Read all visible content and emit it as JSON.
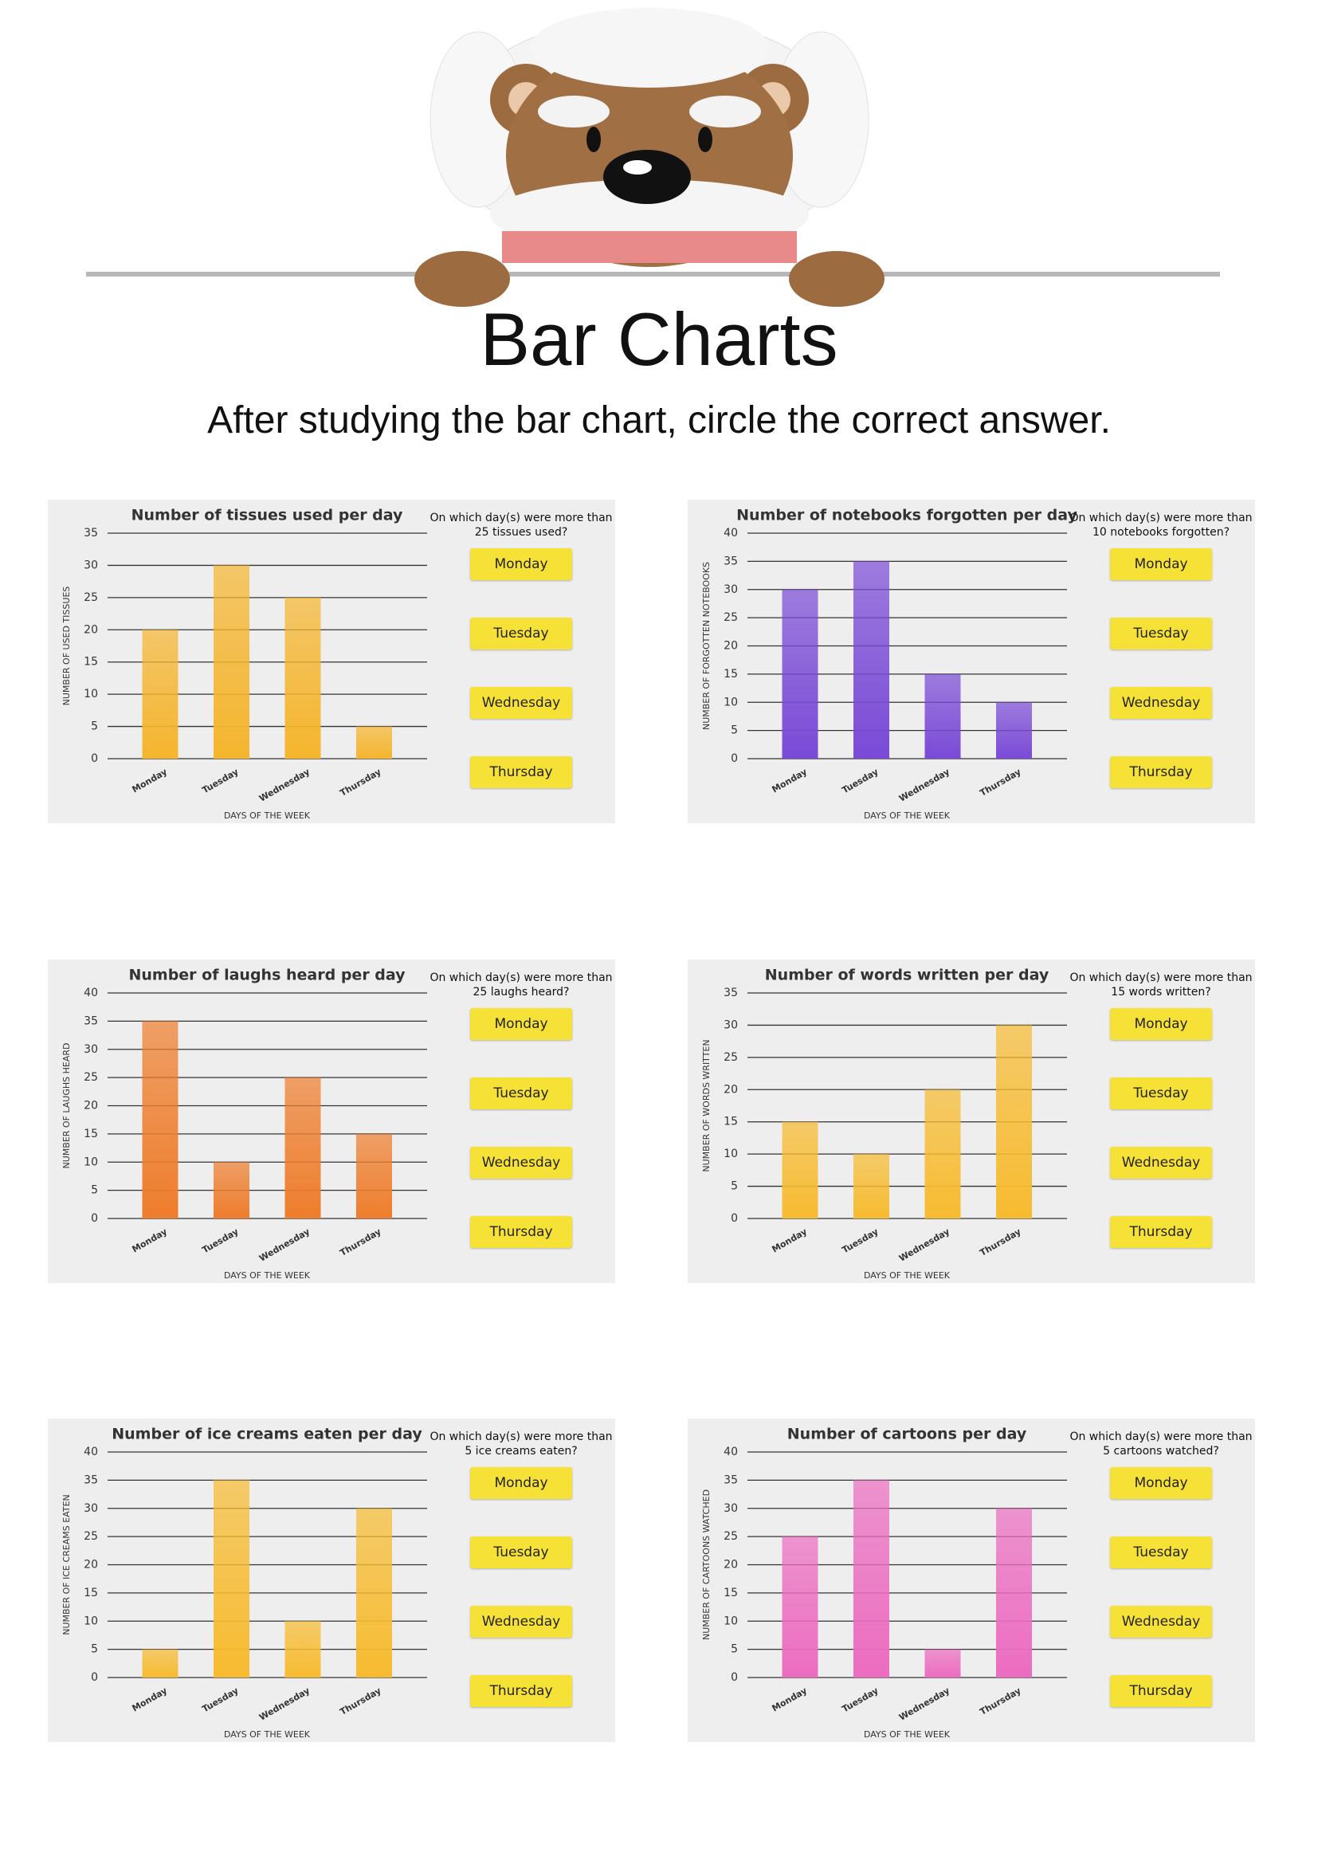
{
  "header": {
    "title": "Bar Charts",
    "subtitle": "After studying the bar chart, circle the correct answer."
  },
  "chart_data": [
    {
      "type": "bar",
      "title": "Number of tissues used per day",
      "xlabel": "DAYS OF THE WEEK",
      "ylabel": "NUMBER OF USED TISSUES",
      "categories": [
        "Monday",
        "Tuesday",
        "Wednesday",
        "Thursday"
      ],
      "values": [
        20,
        30,
        25,
        5
      ],
      "color": "#f5b52e",
      "ylim": [
        0,
        35
      ],
      "yticks": [
        0,
        5,
        10,
        15,
        20,
        25,
        30,
        35
      ],
      "grid": true,
      "question": "On which day(s) were more than 25 tissues used?",
      "options": [
        "Monday",
        "Tuesday",
        "Wednesday",
        "Thursday"
      ]
    },
    {
      "type": "bar",
      "title": "Number of notebooks forgotten per day",
      "xlabel": "DAYS OF THE WEEK",
      "ylabel": "NUMBER OF FORGOTTEN NOTEBOOKS",
      "categories": [
        "Monday",
        "Tuesday",
        "Wednesday",
        "Thursday"
      ],
      "values": [
        30,
        35,
        15,
        10
      ],
      "color": "#7a4ad6",
      "ylim": [
        0,
        40
      ],
      "yticks": [
        0,
        5,
        10,
        15,
        20,
        25,
        30,
        35,
        40
      ],
      "grid": true,
      "question": "On which day(s) were more than 10 notebooks forgotten?",
      "options": [
        "Monday",
        "Tuesday",
        "Wednesday",
        "Thursday"
      ]
    },
    {
      "type": "bar",
      "title": "Number of laughs heard per day",
      "xlabel": "DAYS OF THE WEEK",
      "ylabel": "NUMBER OF LAUGHS HEARD",
      "categories": [
        "Monday",
        "Tuesday",
        "Wednesday",
        "Thursday"
      ],
      "values": [
        35,
        10,
        25,
        15
      ],
      "color": "#ee7d2c",
      "ylim": [
        0,
        40
      ],
      "yticks": [
        0,
        5,
        10,
        15,
        20,
        25,
        30,
        35,
        40
      ],
      "grid": true,
      "question": "On which day(s) were more than 25 laughs heard?",
      "options": [
        "Monday",
        "Tuesday",
        "Wednesday",
        "Thursday"
      ]
    },
    {
      "type": "bar",
      "title": "Number of words written per day",
      "xlabel": "DAYS OF THE WEEK",
      "ylabel": "NUMBER OF WORDS WRITTEN",
      "categories": [
        "Monday",
        "Tuesday",
        "Wednesday",
        "Thursday"
      ],
      "values": [
        15,
        10,
        20,
        30
      ],
      "color": "#f7bb30",
      "ylim": [
        0,
        35
      ],
      "yticks": [
        0,
        5,
        10,
        15,
        20,
        25,
        30,
        35
      ],
      "grid": true,
      "question": "On which day(s) were more than 15 words written?",
      "options": [
        "Monday",
        "Tuesday",
        "Wednesday",
        "Thursday"
      ]
    },
    {
      "type": "bar",
      "title": "Number of ice creams eaten per day",
      "xlabel": "DAYS OF THE WEEK",
      "ylabel": "NUMBER OF ICE CREAMS EATEN",
      "categories": [
        "Monday",
        "Tuesday",
        "Wednesday",
        "Thursday"
      ],
      "values": [
        5,
        35,
        10,
        30
      ],
      "color": "#f7bb30",
      "ylim": [
        0,
        40
      ],
      "yticks": [
        0,
        5,
        10,
        15,
        20,
        25,
        30,
        35,
        40
      ],
      "grid": true,
      "question": "On which day(s) were more than 5 ice creams eaten?",
      "options": [
        "Monday",
        "Tuesday",
        "Wednesday",
        "Thursday"
      ]
    },
    {
      "type": "bar",
      "title": "Number of cartoons per day",
      "xlabel": "DAYS OF THE WEEK",
      "ylabel": "NUMBER OF CARTOONS WATCHED",
      "categories": [
        "Monday",
        "Tuesday",
        "Wednesday",
        "Thursday"
      ],
      "values": [
        25,
        35,
        5,
        30
      ],
      "color": "#ec6cc0",
      "ylim": [
        0,
        40
      ],
      "yticks": [
        0,
        5,
        10,
        15,
        20,
        25,
        30,
        35,
        40
      ],
      "grid": true,
      "question": "On which day(s) were more than 5 cartoons watched?",
      "options": [
        "Monday",
        "Tuesday",
        "Wednesday",
        "Thursday"
      ]
    }
  ]
}
